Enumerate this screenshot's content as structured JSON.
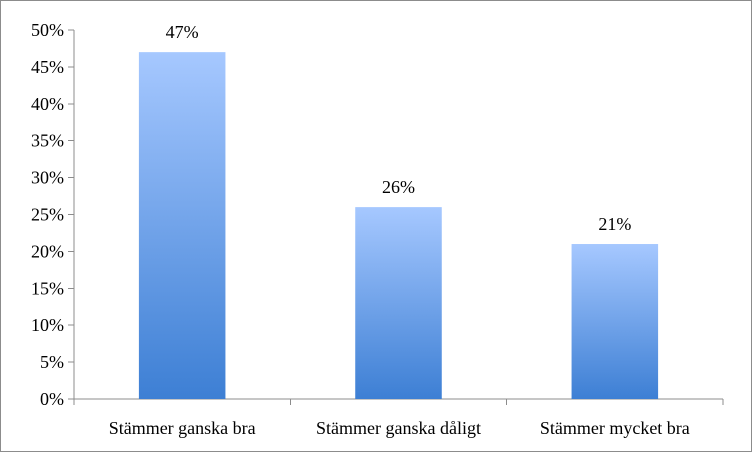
{
  "chart_data": {
    "type": "bar",
    "title": "",
    "xlabel": "",
    "ylabel": "",
    "categories": [
      "Stämmer ganska bra",
      "Stämmer ganska dåligt",
      "Stämmer mycket bra"
    ],
    "values": [
      47,
      26,
      21
    ],
    "data_labels": [
      "47%",
      "26%",
      "21%"
    ],
    "ylim": [
      0,
      50
    ],
    "y_ticks": [
      0,
      5,
      10,
      15,
      20,
      25,
      30,
      35,
      40,
      45,
      50
    ],
    "y_tick_labels": [
      "0%",
      "5%",
      "10%",
      "15%",
      "20%",
      "25%",
      "30%",
      "35%",
      "40%",
      "45%",
      "50%"
    ],
    "grid": false,
    "legend": "none",
    "colors": {
      "bar_top": "#a6c8ff",
      "bar_bottom": "#3d7fd4",
      "axis": "#8c8c8c",
      "text": "#000000"
    }
  }
}
